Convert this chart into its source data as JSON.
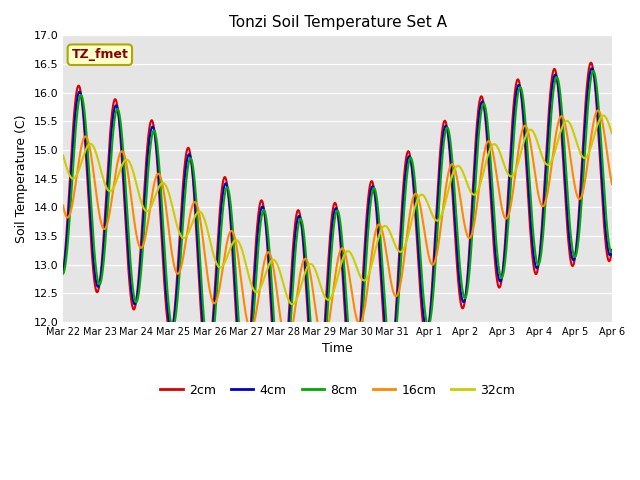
{
  "title": "Tonzi Soil Temperature Set A",
  "xlabel": "Time",
  "ylabel": "Soil Temperature (C)",
  "ylim": [
    12.0,
    17.0
  ],
  "yticks": [
    12.0,
    12.5,
    13.0,
    13.5,
    14.0,
    14.5,
    15.0,
    15.5,
    16.0,
    16.5,
    17.0
  ],
  "label_box": "TZ_fmet",
  "colors": {
    "2cm": "#dd0000",
    "4cm": "#0000cc",
    "8cm": "#00aa00",
    "16cm": "#ff8800",
    "32cm": "#cccc00"
  },
  "bg_color": "#e5e5e5",
  "x_tick_labels": [
    "Mar 22",
    "Mar 23",
    "Mar 24",
    "Mar 25",
    "Mar 26",
    "Mar 27",
    "Mar 28",
    "Mar 29",
    "Mar 30",
    "Mar 31",
    "Apr 1",
    "Apr 2",
    "Apr 3",
    "Apr 4",
    "Apr 5",
    "Apr 6"
  ]
}
